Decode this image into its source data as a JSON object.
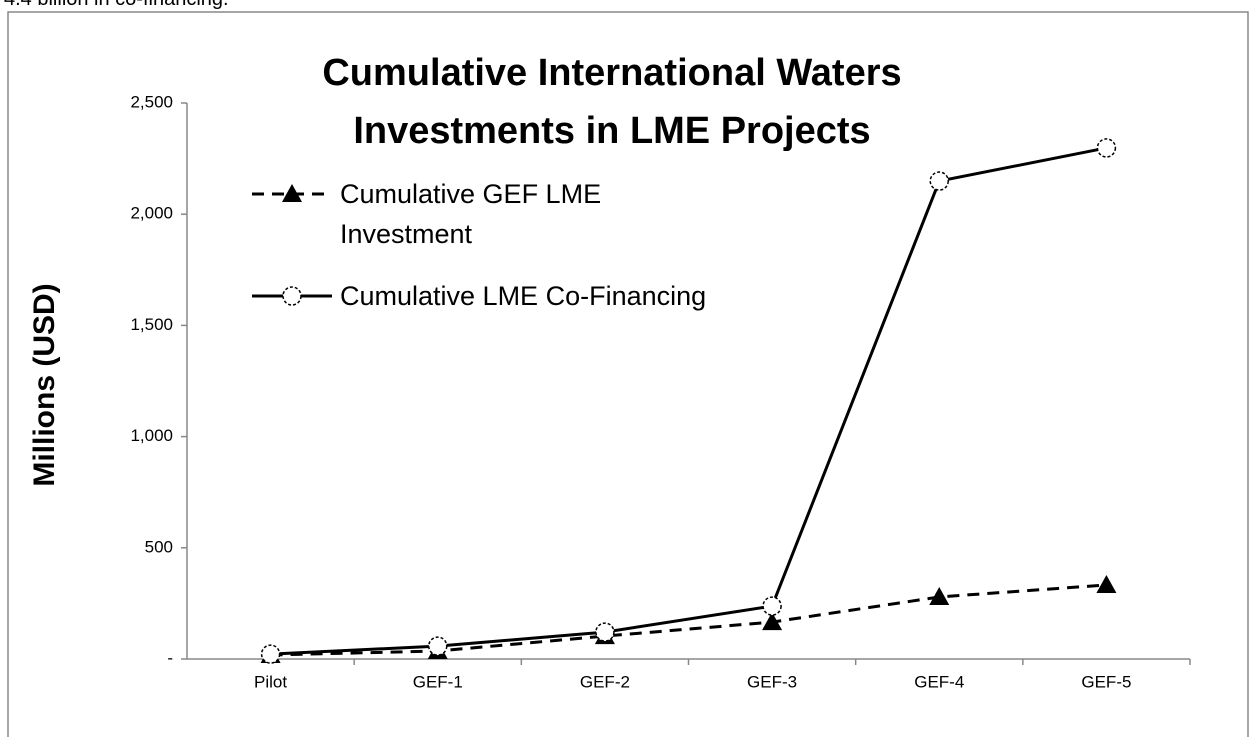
{
  "header_text": "4.4 billion in co-financing.",
  "chart_data": {
    "type": "line",
    "title": "Cumulative International Waters Investments in LME Projects",
    "y_label": "Millions (USD)",
    "categories": [
      "Pilot",
      "GEF-1",
      "GEF-2",
      "GEF-3",
      "GEF-4",
      "GEF-5"
    ],
    "series": [
      {
        "name": "Cumulative GEF LME Investment",
        "color": "#000000",
        "dash": true,
        "marker": "triangle",
        "values": [
          18,
          36,
          103,
          166,
          279,
          333
        ]
      },
      {
        "name": "Cumulative LME Co-Financing",
        "color": "#000000",
        "dash": false,
        "marker": "circle",
        "values": [
          22,
          58,
          121,
          238,
          2149,
          2298
        ]
      }
    ],
    "ylim": [
      0,
      2500
    ],
    "yticks": [
      {
        "value": 0,
        "label": "-"
      },
      500,
      {
        "value": 1000,
        "label": "1,000"
      },
      {
        "value": 1500,
        "label": "1,500"
      },
      {
        "value": 2000,
        "label": "2,000"
      },
      {
        "value": 2500,
        "label": "2,500"
      }
    ],
    "legend": "upper-left"
  }
}
